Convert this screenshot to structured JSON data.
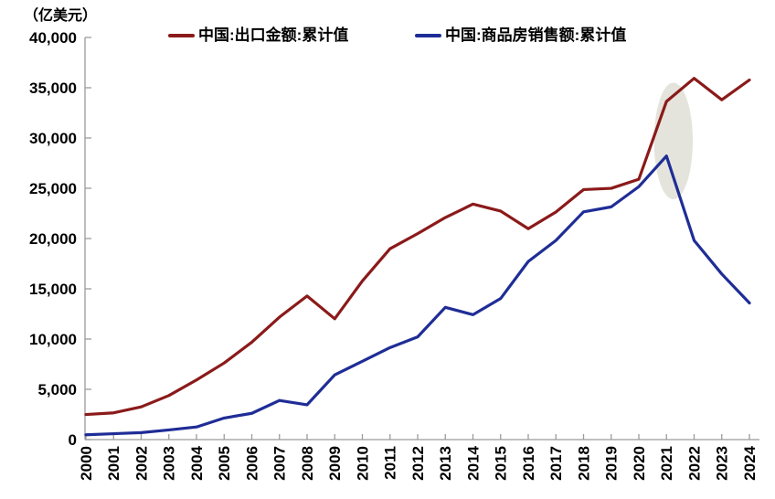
{
  "unit_label": "（亿美元）",
  "legend": {
    "items": [
      {
        "label": "中国:出口金额:累计值",
        "color": "#8B1A1A"
      },
      {
        "label": "中国:商品房销售额:累计值",
        "color": "#1F2D96"
      }
    ]
  },
  "chart_data": {
    "type": "line",
    "title": "",
    "ylabel": "（亿美元）",
    "xlabel": "",
    "grid": false,
    "legend_position": "top",
    "ylim": [
      0,
      40000
    ],
    "ytick_step": 5000,
    "x": [
      2000,
      2001,
      2002,
      2003,
      2004,
      2005,
      2006,
      2007,
      2008,
      2009,
      2010,
      2011,
      2012,
      2013,
      2014,
      2015,
      2016,
      2017,
      2018,
      2019,
      2020,
      2021,
      2022,
      2023,
      2024
    ],
    "series": [
      {
        "name": "中国:出口金额:累计值",
        "color": "#8B1A1A",
        "values": [
          2492,
          2661,
          3256,
          4382,
          5933,
          7620,
          9690,
          12180,
          14285,
          12016,
          15778,
          18984,
          20487,
          22090,
          23423,
          22735,
          20976,
          22633,
          24867,
          24995,
          25900,
          33640,
          35936,
          33800,
          35772
        ]
      },
      {
        "name": "中国:商品房销售额:累计值",
        "color": "#1F2D96",
        "values": [
          475,
          587,
          691,
          961,
          1253,
          2146,
          2613,
          3895,
          3464,
          6441,
          7788,
          9152,
          10215,
          13155,
          12425,
          14032,
          17715,
          19807,
          22655,
          23148,
          25161,
          28206,
          19809,
          16472,
          13588
        ]
      }
    ],
    "highlight_ellipse": {
      "x_year": 2021.25,
      "y_value": 29700,
      "rx_years": 0.7,
      "ry_value": 5800,
      "color": "#E4E4DC"
    }
  }
}
